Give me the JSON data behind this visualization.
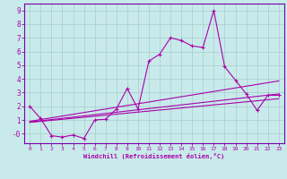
{
  "xlabel": "Windchill (Refroidissement éolien,°C)",
  "background_color": "#c8eaea",
  "grid_color": "#a8cccc",
  "line_color": "#aa00aa",
  "spine_color": "#7700aa",
  "xlim": [
    -0.5,
    23.5
  ],
  "ylim": [
    -0.7,
    9.5
  ],
  "xticks": [
    0,
    1,
    2,
    3,
    4,
    5,
    6,
    7,
    8,
    9,
    10,
    11,
    12,
    13,
    14,
    15,
    16,
    17,
    18,
    19,
    20,
    21,
    22,
    23
  ],
  "yticks": [
    0,
    1,
    2,
    3,
    4,
    5,
    6,
    7,
    8,
    9
  ],
  "main_x": [
    0,
    1,
    2,
    3,
    4,
    5,
    6,
    7,
    8,
    9,
    10,
    11,
    12,
    13,
    14,
    15,
    16,
    17,
    18,
    19,
    20,
    21,
    22,
    23
  ],
  "main_y": [
    2.0,
    1.1,
    -0.15,
    -0.25,
    -0.1,
    -0.35,
    1.0,
    1.05,
    1.8,
    3.3,
    1.8,
    5.3,
    5.8,
    7.0,
    6.8,
    6.4,
    6.3,
    9.0,
    4.9,
    3.9,
    2.9,
    1.7,
    2.8,
    2.8
  ],
  "trend_lines": [
    {
      "x": [
        0,
        23
      ],
      "y": [
        0.9,
        3.85
      ]
    },
    {
      "x": [
        0,
        23
      ],
      "y": [
        0.85,
        2.9
      ]
    },
    {
      "x": [
        0,
        23
      ],
      "y": [
        0.82,
        2.55
      ]
    }
  ]
}
